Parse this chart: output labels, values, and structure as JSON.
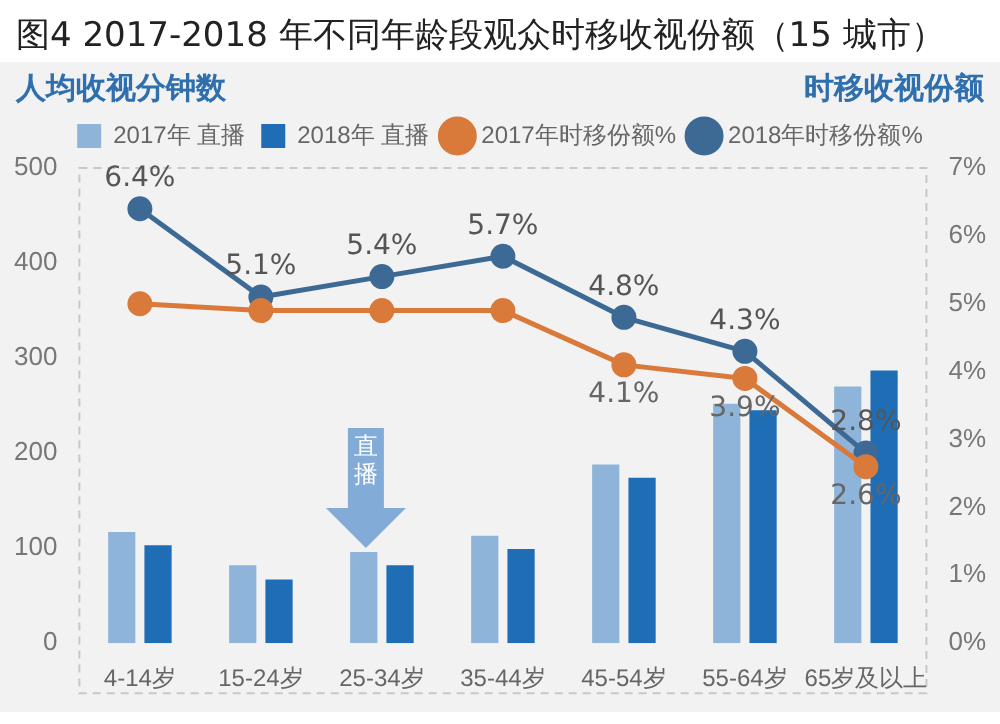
{
  "chart_data": {
    "type": "bar",
    "title": "图4 2017-2018 年不同年龄段观众时移收视份额（15 城市）",
    "ylabel": "人均收视分钟数",
    "y2label": "时移收视份额",
    "categories": [
      "4-14岁",
      "15-24岁",
      "25-34岁",
      "35-44岁",
      "45-54岁",
      "55-64岁",
      "65岁及以上"
    ],
    "series": [
      {
        "name": "2017年 直播",
        "color": "#8fb4d9",
        "values": [
          117,
          82,
          96,
          113,
          188,
          252,
          270
        ]
      },
      {
        "name": "2018年 直播",
        "color": "#1f6db5",
        "values": [
          103,
          67,
          82,
          99,
          174,
          245,
          287
        ]
      },
      {
        "name": "2017年时移份额%",
        "type": "line",
        "axis": "y2",
        "color": "#d9793a",
        "values": [
          5.0,
          4.9,
          4.9,
          4.9,
          4.1,
          3.9,
          2.6
        ],
        "value_labels": [
          null,
          null,
          null,
          null,
          "4.1%",
          "3.9%",
          "2.6%"
        ]
      },
      {
        "name": "2018年时移份额%",
        "type": "line",
        "axis": "y2",
        "color": "#3d6a94",
        "values": [
          6.4,
          5.1,
          5.4,
          5.7,
          4.8,
          4.3,
          2.8
        ],
        "value_labels": [
          "6.4%",
          "5.1%",
          "5.4%",
          "5.7%",
          "4.8%",
          "4.3%",
          "2.8%"
        ]
      }
    ],
    "ylim": [
      0,
      500
    ],
    "yticks": [
      0,
      100,
      200,
      300,
      400,
      500
    ],
    "y2lim": [
      0,
      7
    ],
    "y2ticks": [
      {
        "value": 0,
        "label": "0%"
      },
      {
        "value": 1,
        "label": "1%"
      },
      {
        "value": 2,
        "label": "2%"
      },
      {
        "value": 3,
        "label": "3%"
      },
      {
        "value": 4,
        "label": "4%"
      },
      {
        "value": 5,
        "label": "5%"
      },
      {
        "value": 6,
        "label": "6%"
      },
      {
        "value": 7,
        "label": "7%"
      }
    ],
    "annotations": [
      {
        "text": "直播",
        "x": "25-34岁",
        "y": 96
      }
    ],
    "legend": "top",
    "marker": "circle",
    "grid": false
  }
}
